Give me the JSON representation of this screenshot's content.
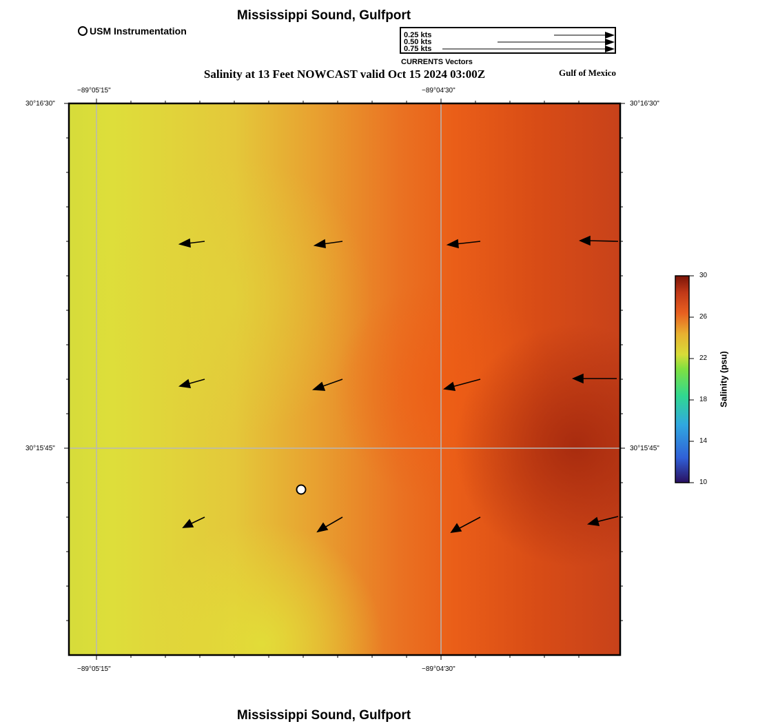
{
  "title_top": "Mississippi Sound, Gulfport",
  "title_bottom": "Mississippi Sound, Gulfport",
  "subtitle": "Salinity at 13 Feet NOWCAST valid Oct 15 2024 03:00Z",
  "region_label": "Gulf of Mexico",
  "station_legend": "USM Instrumentation",
  "vector_legend": {
    "caption": "CURRENTS Vectors",
    "rows": [
      "0.25 kts",
      "0.50 kts",
      "0.75 kts"
    ]
  },
  "axes": {
    "lon_top": [
      "−89°05'15\"",
      "−89°04'30\""
    ],
    "lon_bottom": [
      "−89°05'15\"",
      "−89°04'30\""
    ],
    "lat_left": [
      "30°16'30\"",
      "30°15'45\""
    ],
    "lat_right": [
      "30°16'30\"",
      "30°15'45\""
    ]
  },
  "colorbar": {
    "label": "Salinity (psu)",
    "ticks": [
      "30",
      "26",
      "22",
      "18",
      "14",
      "10"
    ],
    "min": 10,
    "max": 30
  },
  "colors": {
    "yellow": "#dcdc38",
    "orange": "#e8641a",
    "darkred": "#a62a0e"
  }
}
